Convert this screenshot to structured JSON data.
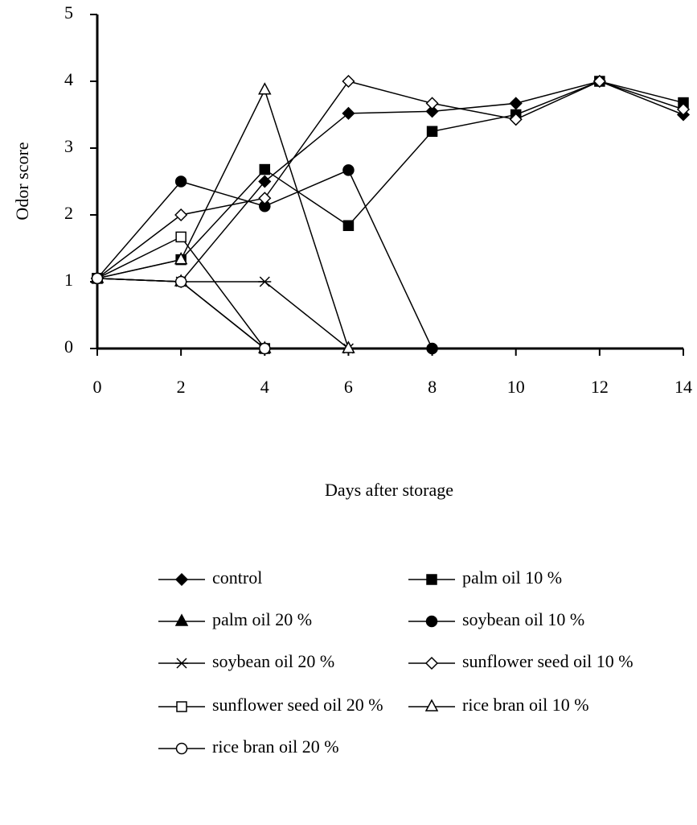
{
  "chart_data": {
    "type": "line",
    "x_label": "Days after storage",
    "y_label": "Odor score",
    "x": [
      0,
      2,
      4,
      6,
      8,
      10,
      12,
      14
    ],
    "xlim": [
      0,
      14
    ],
    "xticks": [
      0,
      2,
      4,
      6,
      8,
      10,
      12,
      14
    ],
    "ylim": [
      0,
      5
    ],
    "yticks": [
      0,
      1,
      2,
      3,
      4,
      5
    ],
    "grid": false,
    "series": [
      {
        "name": "control",
        "color": "#000",
        "marker": "diamond",
        "marker_fill": "#000",
        "values": [
          1.05,
          1.0,
          2.5,
          3.52,
          3.55,
          3.67,
          4.0,
          3.5
        ]
      },
      {
        "name": "palm oil 10 %",
        "color": "#000",
        "marker": "square",
        "marker_fill": "#000",
        "values": [
          1.05,
          1.33,
          2.68,
          1.84,
          3.25,
          3.5,
          4.0,
          3.68
        ]
      },
      {
        "name": "palm oil 20 %",
        "color": "#000",
        "marker": "triangle",
        "marker_fill": "#000",
        "values": [
          1.05,
          1.0,
          0,
          null,
          null,
          null,
          null,
          null
        ]
      },
      {
        "name": "soybean oil 10 %",
        "color": "#000",
        "marker": "circle",
        "marker_fill": "#000",
        "values": [
          1.05,
          2.5,
          2.13,
          2.67,
          0,
          null,
          null,
          null
        ]
      },
      {
        "name": "soybean oil 20 %",
        "color": "#000",
        "marker": "asterisk",
        "marker_fill": "#000",
        "values": [
          1.05,
          1.0,
          1.0,
          0,
          null,
          null,
          null,
          null
        ]
      },
      {
        "name": "sunflower seed oil 10 %",
        "color": "#000",
        "marker": "diamond",
        "marker_fill": "#fff",
        "values": [
          1.05,
          2.0,
          2.25,
          4.0,
          3.67,
          3.43,
          4.0,
          3.58
        ]
      },
      {
        "name": "sunflower seed oil 20 %",
        "color": "#000",
        "marker": "square",
        "marker_fill": "#fff",
        "values": [
          1.05,
          1.67,
          0,
          null,
          null,
          null,
          null,
          null
        ]
      },
      {
        "name": "rice bran oil 10 %",
        "color": "#000",
        "marker": "triangle",
        "marker_fill": "#fff",
        "values": [
          1.05,
          1.33,
          3.87,
          0,
          null,
          null,
          null,
          null
        ]
      },
      {
        "name": "rice bran oil 20 %",
        "color": "#000",
        "marker": "circle",
        "marker_fill": "#fff",
        "values": [
          1.05,
          1.0,
          0,
          null,
          null,
          null,
          null,
          null
        ]
      }
    ]
  }
}
